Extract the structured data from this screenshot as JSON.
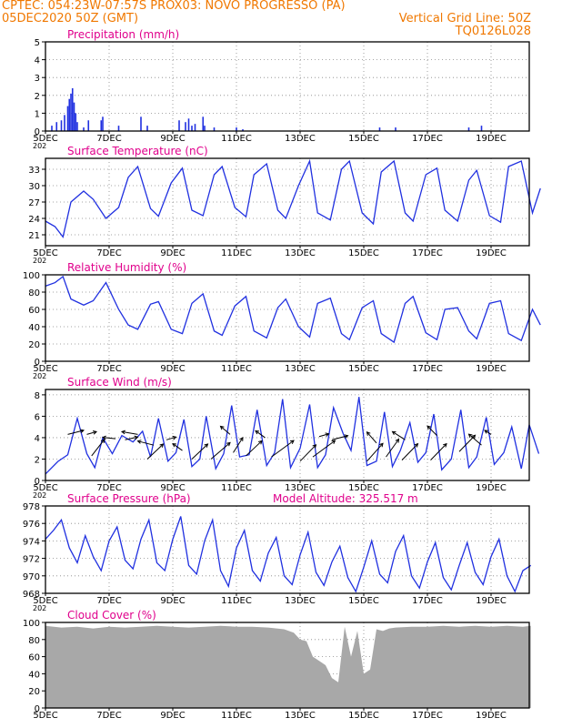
{
  "header": {
    "station": "CPTEC:  054:23W-07:57S   PROX03: NOVO PROGRESSO (PA)",
    "date": "05DEC2020 50Z (GMT)",
    "grid_note": "Vertical Grid Line: 50Z",
    "code": "TQ0126L028"
  },
  "colors": {
    "header": "#f07800",
    "title": "#e0008c",
    "line": "#2030e0",
    "cloud": "#a8a8a8",
    "wind_arrow": "#000000"
  },
  "x_ticks": [
    "5DEC",
    "7DEC",
    "9DEC",
    "11DEC",
    "13DEC",
    "15DEC",
    "17DEC",
    "19DEC"
  ],
  "stub_label": "202",
  "chart_data": [
    {
      "type": "bar",
      "title": "Precipitation (mm/h)",
      "ylim": [
        0,
        5
      ],
      "yticks": [
        "0",
        "1",
        "2",
        "3",
        "4",
        "5"
      ],
      "x_days": [
        0,
        15
      ],
      "series": [
        {
          "x": [
            0.2,
            0.35,
            0.5,
            0.6,
            0.7,
            0.75,
            0.8,
            0.85,
            0.9,
            0.95,
            1.0,
            1.2,
            1.35,
            1.75,
            1.8,
            2.3,
            3.0,
            3.2,
            4.2,
            4.4,
            4.5,
            4.6,
            4.7,
            4.95,
            5.0,
            5.3,
            6.0,
            6.2,
            10.5,
            11.0,
            13.3,
            13.7,
            16.8,
            18.1,
            18.3,
            19.4,
            19.6,
            19.9,
            20.0
          ],
          "values": [
            0.3,
            0.5,
            0.6,
            0.9,
            1.4,
            1.8,
            2.1,
            2.4,
            1.6,
            1.0,
            0.5,
            0.2,
            0.6,
            0.6,
            0.8,
            0.3,
            0.8,
            0.3,
            0.6,
            0.5,
            0.7,
            0.3,
            0.4,
            0.8,
            0.3,
            0.2,
            0.2,
            0.1,
            0.2,
            0.2,
            0.2,
            0.3,
            0.3,
            0.2,
            0.2,
            0.7,
            0.3,
            0.5,
            0.3
          ]
        }
      ]
    },
    {
      "type": "line",
      "title": "Surface Temperature (nC)",
      "ylim": [
        19,
        35
      ],
      "yticks": [
        "21",
        "24",
        "27",
        "30",
        "33"
      ],
      "ytick_values": [
        21,
        24,
        27,
        30,
        33
      ],
      "series": [
        {
          "x": [
            0,
            0.3,
            0.55,
            0.8,
            1.2,
            1.5,
            1.9,
            2.3,
            2.6,
            2.9,
            3.3,
            3.55,
            3.95,
            4.3,
            4.6,
            4.95,
            5.3,
            5.55,
            5.95,
            6.3,
            6.55,
            6.95,
            7.3,
            7.55,
            7.95,
            8.3,
            8.55,
            8.95,
            9.3,
            9.55,
            9.95,
            10.3,
            10.55,
            10.95,
            11.3,
            11.55,
            11.95,
            12.3,
            12.55,
            12.95,
            13.3,
            13.55,
            13.95,
            14.3,
            14.55,
            14.95,
            15.3,
            15.55
          ],
          "values": [
            23.5,
            22.5,
            20.6,
            27,
            29,
            27.5,
            24,
            26,
            31.5,
            33.5,
            25.8,
            24.4,
            30.5,
            33.2,
            25.5,
            24.5,
            32,
            33.5,
            26,
            24.3,
            32,
            34,
            25.5,
            24,
            30,
            34.5,
            25,
            23.7,
            33,
            34.5,
            25,
            23,
            32.5,
            34.5,
            25,
            23.5,
            32,
            33.2,
            25.5,
            23.5,
            31,
            32.8,
            24.5,
            23.3,
            33.5,
            34.5,
            25,
            29.5
          ]
        }
      ]
    },
    {
      "type": "line",
      "title": "Relative Humidity (%)",
      "ylim": [
        0,
        100
      ],
      "yticks": [
        "0",
        "20",
        "40",
        "60",
        "80",
        "100"
      ],
      "ytick_values": [
        0,
        20,
        40,
        60,
        80,
        100
      ],
      "series": [
        {
          "x": [
            0,
            0.3,
            0.55,
            0.8,
            1.2,
            1.5,
            1.9,
            2.3,
            2.6,
            2.9,
            3.3,
            3.55,
            3.95,
            4.3,
            4.6,
            4.95,
            5.3,
            5.55,
            5.95,
            6.3,
            6.55,
            6.95,
            7.3,
            7.55,
            7.95,
            8.3,
            8.55,
            8.95,
            9.3,
            9.55,
            9.95,
            10.3,
            10.55,
            10.95,
            11.3,
            11.55,
            11.95,
            12.3,
            12.55,
            12.95,
            13.3,
            13.55,
            13.95,
            14.3,
            14.55,
            14.95,
            15.3,
            15.55
          ],
          "values": [
            87,
            91,
            98,
            72,
            65,
            70,
            91,
            60,
            42,
            37,
            66,
            69,
            37,
            32,
            67,
            78,
            35,
            30,
            64,
            75,
            35,
            27,
            62,
            72,
            40,
            28,
            67,
            73,
            32,
            25,
            62,
            70,
            32,
            22,
            67,
            75,
            33,
            25,
            60,
            62,
            35,
            26,
            67,
            70,
            32,
            24,
            60,
            42
          ]
        }
      ]
    },
    {
      "type": "line",
      "title": "Surface Wind (m/s)",
      "ylim": [
        0,
        8.5
      ],
      "yticks": [
        "0",
        "2",
        "4",
        "6",
        "8"
      ],
      "ytick_values": [
        0,
        2,
        4,
        6,
        8
      ],
      "series": [
        {
          "x": [
            0,
            0.4,
            0.7,
            1.0,
            1.3,
            1.55,
            1.8,
            2.1,
            2.4,
            2.75,
            3.05,
            3.3,
            3.55,
            3.85,
            4.1,
            4.35,
            4.6,
            4.85,
            5.05,
            5.35,
            5.6,
            5.85,
            6.1,
            6.4,
            6.65,
            6.95,
            7.2,
            7.45,
            7.7,
            8.0,
            8.3,
            8.55,
            8.8,
            9.05,
            9.35,
            9.6,
            9.85,
            10.1,
            10.4,
            10.65,
            10.9,
            11.15,
            11.45,
            11.7,
            11.95,
            12.2,
            12.45,
            12.75,
            13.05,
            13.3,
            13.55,
            13.85,
            14.1,
            14.4,
            14.65,
            14.95,
            15.2,
            15.5
          ],
          "values": [
            0.6,
            1.8,
            2.4,
            5.8,
            2.5,
            1.2,
            4.0,
            2.5,
            4.2,
            3.6,
            4.6,
            2.2,
            5.8,
            1.8,
            2.6,
            5.7,
            1.3,
            2.0,
            6.0,
            1.1,
            2.5,
            7.0,
            2.2,
            2.4,
            6.6,
            1.4,
            2.6,
            7.6,
            1.2,
            3.0,
            7.1,
            1.2,
            2.4,
            6.8,
            4.4,
            2.8,
            7.8,
            1.4,
            1.8,
            6.4,
            1.3,
            2.8,
            5.4,
            1.7,
            2.6,
            6.2,
            1.0,
            2.0,
            6.6,
            1.2,
            2.2,
            5.9,
            1.5,
            2.6,
            5.0,
            1.1,
            5.2,
            2.5
          ]
        }
      ]
    },
    {
      "type": "line",
      "title": "Surface Pressure (hPa)",
      "subtitle": "Model Altitude: 325.517 m",
      "ylim": [
        968,
        978
      ],
      "yticks": [
        "968",
        "970",
        "972",
        "974",
        "976",
        "978"
      ],
      "ytick_values": [
        968,
        970,
        972,
        974,
        976,
        978
      ],
      "series": [
        {
          "x": [
            0,
            0.25,
            0.5,
            0.75,
            1.0,
            1.25,
            1.5,
            1.75,
            2.0,
            2.25,
            2.5,
            2.75,
            3.0,
            3.25,
            3.5,
            3.75,
            4.0,
            4.25,
            4.5,
            4.75,
            5.0,
            5.25,
            5.5,
            5.75,
            6.0,
            6.25,
            6.5,
            6.75,
            7.0,
            7.25,
            7.5,
            7.75,
            8.0,
            8.25,
            8.5,
            8.75,
            9.0,
            9.25,
            9.5,
            9.75,
            10.0,
            10.25,
            10.5,
            10.75,
            11.0,
            11.25,
            11.5,
            11.75,
            12.0,
            12.25,
            12.5,
            12.75,
            13.0,
            13.25,
            13.5,
            13.75,
            14.0,
            14.25,
            14.5,
            14.75,
            15.0,
            15.25
          ],
          "values": [
            974.2,
            975.2,
            976.4,
            973.2,
            971.5,
            974.6,
            972.2,
            970.6,
            974.0,
            975.6,
            971.8,
            970.8,
            974.2,
            976.4,
            971.5,
            970.6,
            974.2,
            976.8,
            971.2,
            970.2,
            974.0,
            976.4,
            970.6,
            968.8,
            973.2,
            975.2,
            970.6,
            969.4,
            972.6,
            974.4,
            970.0,
            969.0,
            972.4,
            975.0,
            970.4,
            968.9,
            971.6,
            973.4,
            969.8,
            968.2,
            971.0,
            974.0,
            970.2,
            969.2,
            972.8,
            974.6,
            970.0,
            968.6,
            971.6,
            973.8,
            969.8,
            968.4,
            971.2,
            973.8,
            970.4,
            969.0,
            972.2,
            974.2,
            970.0,
            968.2,
            970.6,
            971.2
          ]
        }
      ]
    },
    {
      "type": "area",
      "title": "Cloud Cover (%)",
      "ylim": [
        0,
        100
      ],
      "yticks": [
        "0",
        "20",
        "40",
        "60",
        "80",
        "100"
      ],
      "ytick_values": [
        0,
        20,
        40,
        60,
        80,
        100
      ],
      "series": [
        {
          "x": [
            0,
            0.5,
            1.0,
            1.5,
            2.0,
            2.5,
            3.0,
            3.5,
            4.0,
            4.5,
            5.0,
            5.5,
            6.0,
            6.5,
            7.0,
            7.5,
            7.8,
            8.0,
            8.2,
            8.4,
            8.6,
            8.8,
            9.0,
            9.2,
            9.4,
            9.6,
            9.8,
            10.0,
            10.2,
            10.4,
            10.6,
            10.8,
            11.0,
            11.5,
            12.0,
            12.5,
            13.0,
            13.5,
            14.0,
            14.5,
            15.0,
            15.25
          ],
          "values": [
            96,
            94,
            95,
            93,
            95,
            94,
            95,
            96,
            95,
            94,
            95,
            96,
            95,
            95,
            94,
            92,
            88,
            80,
            78,
            60,
            55,
            50,
            35,
            30,
            95,
            60,
            90,
            40,
            45,
            92,
            90,
            93,
            94,
            95,
            95,
            96,
            95,
            96,
            95,
            96,
            95,
            96
          ]
        }
      ]
    }
  ]
}
